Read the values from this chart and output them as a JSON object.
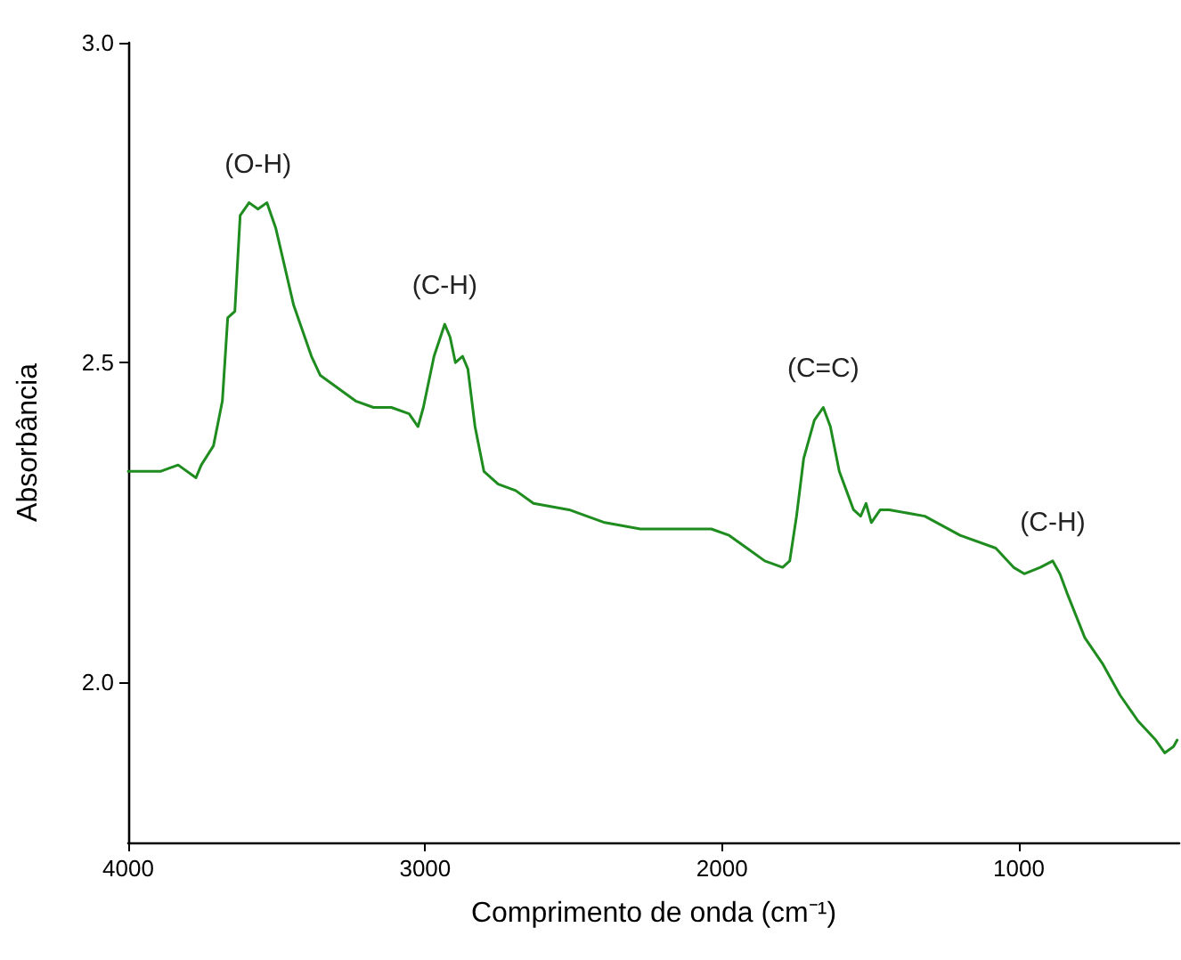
{
  "chart_data": {
    "type": "line",
    "xlabel": "Comprimento de onda (cm⁻¹)",
    "ylabel": "Absorbância",
    "xlim": [
      4000,
      460
    ],
    "xticks": [
      4000,
      3000,
      2000,
      1000
    ],
    "ylim": [
      1.75,
      3.0
    ],
    "yticks": [
      {
        "value": 2.0,
        "label": "2.0"
      },
      {
        "value": 2.5,
        "label": "2.5"
      },
      {
        "value": 3.0,
        "label": "3.0"
      }
    ],
    "grid": false,
    "marker": "none",
    "line_style": "solid",
    "annotations": [
      {
        "text": "(O-H)",
        "x": 3563,
        "y": 2.75
      },
      {
        "text": "(C-H)",
        "x": 2934,
        "y": 2.56
      },
      {
        "text": "(C=C)",
        "x": 1659,
        "y": 2.43
      },
      {
        "text": "(C-H)",
        "x": 886,
        "y": 2.19
      }
    ],
    "x": [
      4000,
      3892,
      3832,
      3772,
      3754,
      3713,
      3683,
      3665,
      3641,
      3623,
      3593,
      3563,
      3533,
      3503,
      3473,
      3443,
      3413,
      3383,
      3353,
      3293,
      3234,
      3174,
      3114,
      3054,
      3024,
      3006,
      2970,
      2934,
      2916,
      2898,
      2874,
      2856,
      2832,
      2802,
      2754,
      2695,
      2635,
      2515,
      2395,
      2275,
      2156,
      2036,
      1976,
      1916,
      1856,
      1796,
      1772,
      1749,
      1725,
      1689,
      1659,
      1635,
      1605,
      1581,
      1557,
      1533,
      1515,
      1497,
      1467,
      1437,
      1317,
      1198,
      1078,
      1018,
      982,
      928,
      886,
      862,
      838,
      778,
      719,
      659,
      599,
      539,
      509,
      479,
      467
    ],
    "series": [
      {
        "color": "#1e8c1e",
        "values": [
          2.33,
          2.33,
          2.34,
          2.32,
          2.34,
          2.37,
          2.44,
          2.57,
          2.58,
          2.73,
          2.75,
          2.74,
          2.75,
          2.71,
          2.65,
          2.59,
          2.55,
          2.51,
          2.48,
          2.46,
          2.44,
          2.43,
          2.43,
          2.42,
          2.4,
          2.43,
          2.51,
          2.56,
          2.54,
          2.5,
          2.51,
          2.49,
          2.4,
          2.33,
          2.31,
          2.3,
          2.28,
          2.27,
          2.25,
          2.24,
          2.24,
          2.24,
          2.23,
          2.21,
          2.19,
          2.18,
          2.19,
          2.26,
          2.35,
          2.41,
          2.43,
          2.4,
          2.33,
          2.3,
          2.27,
          2.26,
          2.28,
          2.25,
          2.27,
          2.27,
          2.26,
          2.23,
          2.21,
          2.18,
          2.17,
          2.18,
          2.19,
          2.17,
          2.14,
          2.07,
          2.03,
          1.98,
          1.94,
          1.91,
          1.89,
          1.9,
          1.91
        ]
      }
    ]
  }
}
